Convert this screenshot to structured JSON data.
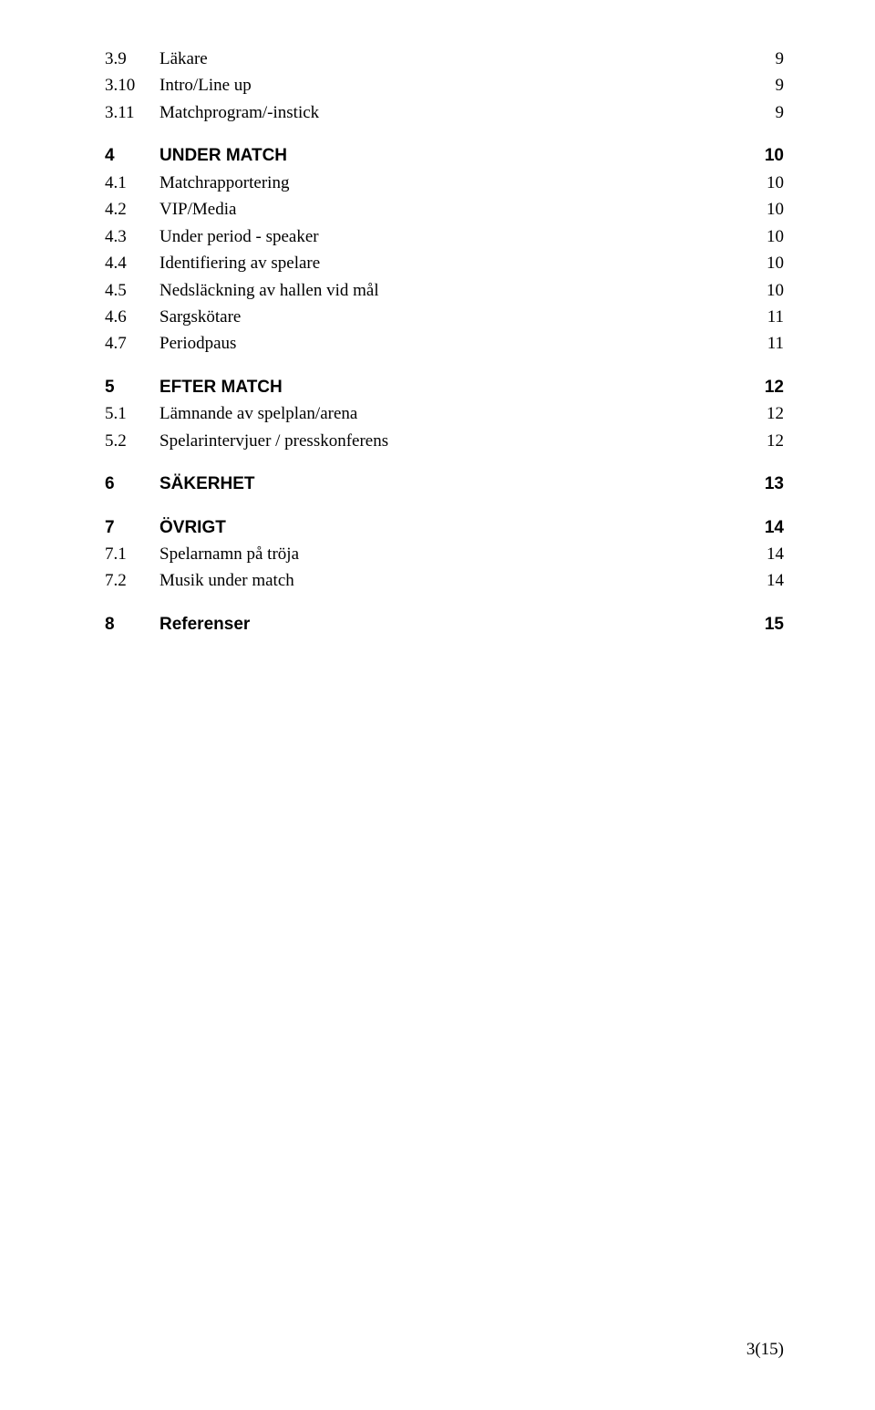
{
  "toc": {
    "preEntries": [
      {
        "num": "3.9",
        "title": "Läkare",
        "page": "9"
      },
      {
        "num": "3.10",
        "title": "Intro/Line up",
        "page": "9"
      },
      {
        "num": "3.11",
        "title": "Matchprogram/-instick",
        "page": "9"
      }
    ],
    "sections": [
      {
        "num": "4",
        "title": "UNDER MATCH",
        "page": "10",
        "entries": [
          {
            "num": "4.1",
            "title": "Matchrapportering",
            "page": "10"
          },
          {
            "num": "4.2",
            "title": "VIP/Media",
            "page": "10"
          },
          {
            "num": "4.3",
            "title": "Under period - speaker",
            "page": "10"
          },
          {
            "num": "4.4",
            "title": "Identifiering av spelare",
            "page": "10"
          },
          {
            "num": "4.5",
            "title": "Nedsläckning av hallen vid mål",
            "page": "10"
          },
          {
            "num": "4.6",
            "title": "Sargskötare",
            "page": "11"
          },
          {
            "num": "4.7",
            "title": "Periodpaus",
            "page": "11"
          }
        ]
      },
      {
        "num": "5",
        "title": "EFTER MATCH",
        "page": "12",
        "entries": [
          {
            "num": "5.1",
            "title": "Lämnande av spelplan/arena",
            "page": "12"
          },
          {
            "num": "5.2",
            "title": "Spelarintervjuer / presskonferens",
            "page": "12"
          }
        ]
      },
      {
        "num": "6",
        "title": "SÄKERHET",
        "page": "13",
        "entries": []
      },
      {
        "num": "7",
        "title": "ÖVRIGT",
        "page": "14",
        "entries": [
          {
            "num": "7.1",
            "title": "Spelarnamn på tröja",
            "page": "14"
          },
          {
            "num": "7.2",
            "title": "Musik under match",
            "page": "14"
          }
        ]
      },
      {
        "num": "8",
        "title": "Referenser",
        "page": "15",
        "entries": []
      }
    ]
  },
  "footer": {
    "pageLabel": "3(15)"
  },
  "style": {
    "text_color": "#000000",
    "background_color": "#ffffff",
    "heading_font": "Arial",
    "body_font": "Times New Roman",
    "heading_fontsize": 19,
    "body_fontsize": 19
  }
}
